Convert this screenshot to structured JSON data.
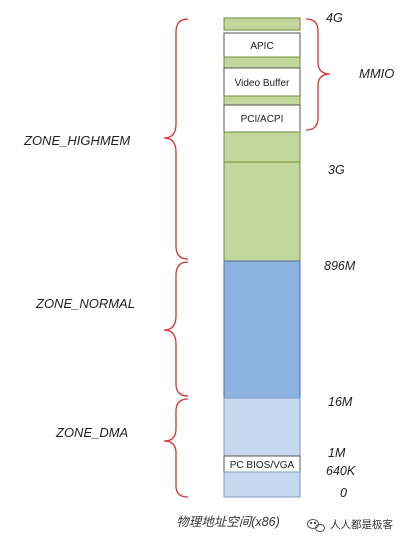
{
  "segments": [
    {
      "key": "top",
      "label": "",
      "fill": "#c3d69b",
      "border": "#6e8f3a"
    },
    {
      "key": "apic",
      "label": "APIC",
      "fill": "#ffffff",
      "border": "#555555"
    },
    {
      "key": "gap1",
      "label": "",
      "fill": "#c3d69b",
      "border": "#6e8f3a"
    },
    {
      "key": "video",
      "label": "Video Buffer",
      "fill": "#ffffff",
      "border": "#555555"
    },
    {
      "key": "gap2",
      "label": "",
      "fill": "#c3d69b",
      "border": "#6e8f3a"
    },
    {
      "key": "pci",
      "label": "PCI/ACPI",
      "fill": "#ffffff",
      "border": "#555555"
    },
    {
      "key": "hm1",
      "label": "",
      "fill": "#c3d69b",
      "border": "#6e8f3a"
    },
    {
      "key": "hm2",
      "label": "",
      "fill": "#c3d69b",
      "border": "#6e8f3a"
    },
    {
      "key": "normal",
      "label": "",
      "fill": "#8db3e2",
      "border": "#4a6fa5"
    },
    {
      "key": "dma1",
      "label": "",
      "fill": "#c6d9f1",
      "border": "#7f9cc4"
    },
    {
      "key": "pcbios",
      "label": "PC BIOS/VGA",
      "fill": "#ffffff",
      "border": "#555555"
    },
    {
      "key": "dma2",
      "label": "",
      "fill": "#c6d9f1",
      "border": "#7f9cc4"
    }
  ],
  "addresses": [
    "4G",
    "3G",
    "896M",
    "16M",
    "1M",
    "640K",
    "0"
  ],
  "zones": [
    "ZONE_HIGHMEM",
    "ZONE_NORMAL",
    "ZONE_DMA"
  ],
  "mmio_label": "MMIO",
  "caption": "物理地址空间(x86)",
  "watermark": {
    "text": "人人都是极客",
    "icon": "wechat-icon"
  },
  "colors": {
    "brace": "#d9322f",
    "highmem": "#c3d69b",
    "normal": "#8db3e2",
    "dma": "#c6d9f1"
  }
}
